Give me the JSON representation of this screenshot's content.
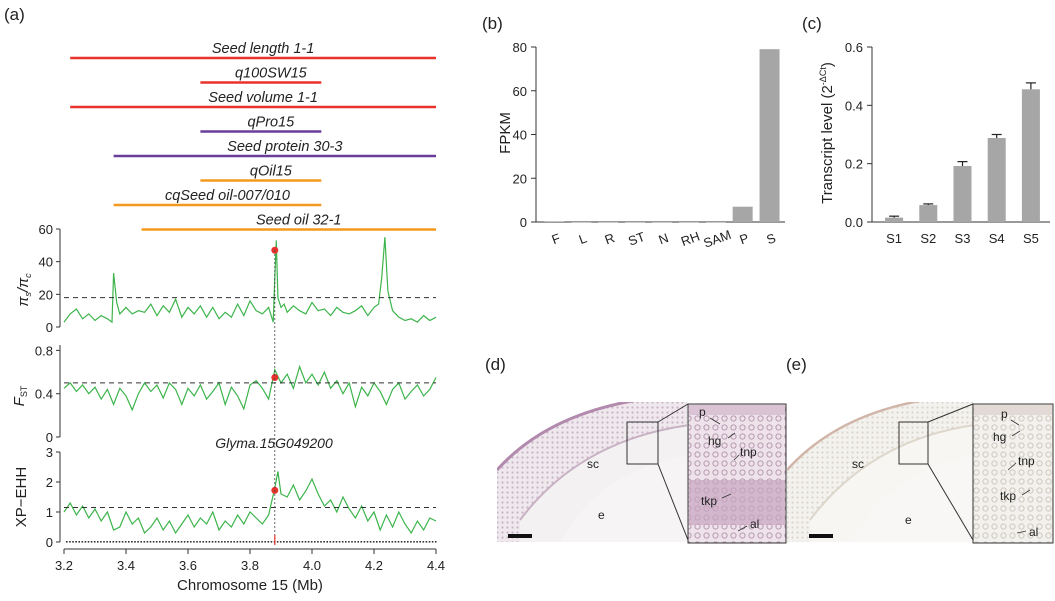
{
  "colors": {
    "red": "#e8322b",
    "purple": "#6a3d9a",
    "orange": "#f39a1e",
    "green": "#3cb44b",
    "bar_gray": "#a6a6a6",
    "marker_red": "#e8322b"
  },
  "panel_a": {
    "label": "(a)",
    "qtls": [
      {
        "name": "Seed length 1-1",
        "start": 3.22,
        "end": 4.4,
        "color": "red"
      },
      {
        "name": "q100SW15",
        "start": 3.64,
        "end": 4.03,
        "color": "red"
      },
      {
        "name": "Seed volume 1-1",
        "start": 3.22,
        "end": 4.4,
        "color": "red"
      },
      {
        "name": "qPro15",
        "start": 3.64,
        "end": 4.03,
        "color": "purple"
      },
      {
        "name": "Seed protein 30-3",
        "start": 3.36,
        "end": 4.4,
        "color": "purple"
      },
      {
        "name": "qOil15",
        "start": 3.64,
        "end": 4.03,
        "color": "orange"
      },
      {
        "name": "cqSeed oil-007/010",
        "start": 3.36,
        "end": 4.03,
        "color": "orange"
      },
      {
        "name": "Seed oil 32-1",
        "start": 3.45,
        "end": 4.4,
        "color": "orange"
      }
    ],
    "gene_label": "Glyma.15G049200",
    "gene_position": 3.88,
    "xlabel": "Chromosome 15 (Mb)",
    "xticks": [
      "3.2",
      "3.4",
      "3.6",
      "3.8",
      "4.0",
      "4.2",
      "4.4"
    ],
    "xlim": [
      3.2,
      4.4
    ],
    "track_pi": {
      "ylabel_main": "π",
      "ylabel_sub1": "s",
      "ylabel_mid": "/π",
      "ylabel_sub2": "c",
      "yticks": [
        "0",
        "20",
        "40",
        "60"
      ],
      "ylim": [
        0,
        60
      ],
      "threshold": 18,
      "marker": {
        "x": 3.88,
        "y": 47
      },
      "x": [
        3.2,
        3.22,
        3.24,
        3.26,
        3.28,
        3.3,
        3.32,
        3.34,
        3.355,
        3.36,
        3.37,
        3.38,
        3.4,
        3.42,
        3.44,
        3.46,
        3.48,
        3.5,
        3.52,
        3.54,
        3.56,
        3.58,
        3.6,
        3.62,
        3.64,
        3.66,
        3.68,
        3.7,
        3.72,
        3.74,
        3.76,
        3.78,
        3.8,
        3.82,
        3.84,
        3.86,
        3.875,
        3.88,
        3.885,
        3.89,
        3.9,
        3.91,
        3.92,
        3.94,
        3.96,
        3.98,
        4.0,
        4.02,
        4.04,
        4.06,
        4.08,
        4.1,
        4.12,
        4.14,
        4.16,
        4.18,
        4.2,
        4.215,
        4.225,
        4.235,
        4.245,
        4.26,
        4.28,
        4.3,
        4.32,
        4.34,
        4.36,
        4.38,
        4.4
      ],
      "y": [
        3,
        8,
        11,
        5,
        8,
        4,
        7,
        5,
        3,
        33,
        15,
        8,
        12,
        8,
        10,
        9,
        14,
        7,
        13,
        9,
        17,
        6,
        12,
        8,
        13,
        6,
        12,
        5,
        9,
        6,
        14,
        7,
        16,
        10,
        8,
        12,
        3,
        30,
        53,
        18,
        12,
        14,
        9,
        13,
        10,
        8,
        15,
        10,
        11,
        7,
        12,
        9,
        8,
        10,
        13,
        7,
        12,
        14,
        30,
        55,
        22,
        10,
        6,
        4,
        5,
        3,
        7,
        4,
        6
      ]
    },
    "track_fst": {
      "ylabel_main": "F",
      "ylabel_sub": "ST",
      "yticks": [
        "0",
        "0.4",
        "0.8"
      ],
      "ylim": [
        0,
        0.85
      ],
      "threshold": 0.5,
      "marker": {
        "x": 3.88,
        "y": 0.55
      },
      "x": [
        3.2,
        3.22,
        3.24,
        3.26,
        3.28,
        3.3,
        3.32,
        3.34,
        3.36,
        3.38,
        3.4,
        3.42,
        3.44,
        3.46,
        3.48,
        3.5,
        3.52,
        3.54,
        3.56,
        3.58,
        3.6,
        3.62,
        3.64,
        3.66,
        3.68,
        3.7,
        3.72,
        3.74,
        3.76,
        3.78,
        3.8,
        3.82,
        3.84,
        3.86,
        3.88,
        3.9,
        3.92,
        3.94,
        3.96,
        3.98,
        4.0,
        4.02,
        4.04,
        4.06,
        4.08,
        4.1,
        4.12,
        4.14,
        4.16,
        4.18,
        4.2,
        4.22,
        4.24,
        4.26,
        4.28,
        4.3,
        4.32,
        4.34,
        4.36,
        4.38,
        4.4
      ],
      "y": [
        0.45,
        0.5,
        0.42,
        0.48,
        0.4,
        0.46,
        0.35,
        0.44,
        0.3,
        0.45,
        0.38,
        0.25,
        0.4,
        0.5,
        0.42,
        0.48,
        0.36,
        0.5,
        0.44,
        0.3,
        0.45,
        0.38,
        0.48,
        0.35,
        0.42,
        0.5,
        0.3,
        0.46,
        0.38,
        0.26,
        0.48,
        0.52,
        0.45,
        0.35,
        0.62,
        0.5,
        0.58,
        0.45,
        0.65,
        0.5,
        0.58,
        0.48,
        0.6,
        0.45,
        0.52,
        0.4,
        0.5,
        0.28,
        0.46,
        0.38,
        0.5,
        0.42,
        0.3,
        0.44,
        0.5,
        0.35,
        0.42,
        0.48,
        0.38,
        0.44,
        0.55
      ]
    },
    "track_xpehh": {
      "ylabel": "XP−EHH",
      "yticks": [
        "0",
        "1",
        "2",
        "3"
      ],
      "ylim": [
        0,
        3
      ],
      "threshold": 1.15,
      "marker": {
        "x": 3.88,
        "y": 1.72
      },
      "x": [
        3.2,
        3.22,
        3.24,
        3.26,
        3.28,
        3.3,
        3.32,
        3.34,
        3.36,
        3.38,
        3.4,
        3.42,
        3.44,
        3.46,
        3.48,
        3.5,
        3.52,
        3.54,
        3.56,
        3.58,
        3.6,
        3.62,
        3.64,
        3.66,
        3.68,
        3.7,
        3.72,
        3.74,
        3.76,
        3.78,
        3.8,
        3.82,
        3.84,
        3.86,
        3.88,
        3.89,
        3.9,
        3.92,
        3.94,
        3.96,
        3.98,
        4.0,
        4.02,
        4.04,
        4.06,
        4.08,
        4.1,
        4.12,
        4.14,
        4.16,
        4.18,
        4.2,
        4.22,
        4.24,
        4.26,
        4.28,
        4.3,
        4.32,
        4.34,
        4.36,
        4.38,
        4.4
      ],
      "y": [
        1.0,
        1.3,
        0.9,
        1.2,
        0.8,
        1.1,
        0.7,
        1.0,
        0.4,
        0.5,
        1.0,
        0.6,
        0.8,
        0.3,
        0.5,
        0.8,
        0.4,
        0.7,
        0.3,
        0.6,
        0.9,
        0.5,
        0.8,
        0.6,
        1.0,
        0.4,
        0.7,
        0.5,
        0.9,
        0.6,
        1.0,
        0.8,
        0.6,
        0.9,
        1.8,
        2.35,
        1.6,
        1.5,
        1.9,
        1.4,
        1.7,
        2.1,
        1.6,
        1.2,
        1.4,
        1.0,
        1.5,
        1.1,
        0.8,
        1.2,
        0.7,
        1.0,
        0.4,
        0.9,
        0.5,
        1.0,
        0.6,
        0.3,
        0.7,
        0.4,
        0.8,
        0.7
      ]
    }
  },
  "panel_b": {
    "label": "(b)",
    "chart_data": {
      "type": "bar",
      "categories": [
        "F",
        "L",
        "R",
        "ST",
        "N",
        "RH",
        "SAM",
        "P",
        "S"
      ],
      "values": [
        0.3,
        0,
        0,
        0,
        0,
        0,
        0,
        7,
        79
      ],
      "ylabel": "FPKM",
      "yticks": [
        "0",
        "20",
        "40",
        "60",
        "80"
      ],
      "ylim": [
        0,
        80
      ]
    }
  },
  "panel_c": {
    "label": "(c)",
    "chart_data": {
      "type": "bar",
      "categories": [
        "S1",
        "S2",
        "S3",
        "S4",
        "S5"
      ],
      "values": [
        0.015,
        0.058,
        0.192,
        0.288,
        0.455
      ],
      "errors": [
        0.005,
        0.004,
        0.015,
        0.012,
        0.022
      ],
      "ylabel": "Transcript level (2",
      "ylabel_sup": "-ΔCt",
      "ylabel_end": ")",
      "yticks": [
        "0.0",
        "0.2",
        "0.4",
        "0.6"
      ],
      "ylim": [
        0,
        0.6
      ]
    }
  },
  "panel_d": {
    "label": "(d)",
    "labels": {
      "sc": "sc",
      "e": "e",
      "p": "p",
      "hg": "hg",
      "tnp": "tnp",
      "tkp": "tkp",
      "al": "al"
    }
  },
  "panel_e": {
    "label": "(e)",
    "labels": {
      "sc": "sc",
      "e": "e",
      "p": "p",
      "hg": "hg",
      "tnp": "tnp",
      "tkp": "tkp",
      "al": "al"
    }
  }
}
